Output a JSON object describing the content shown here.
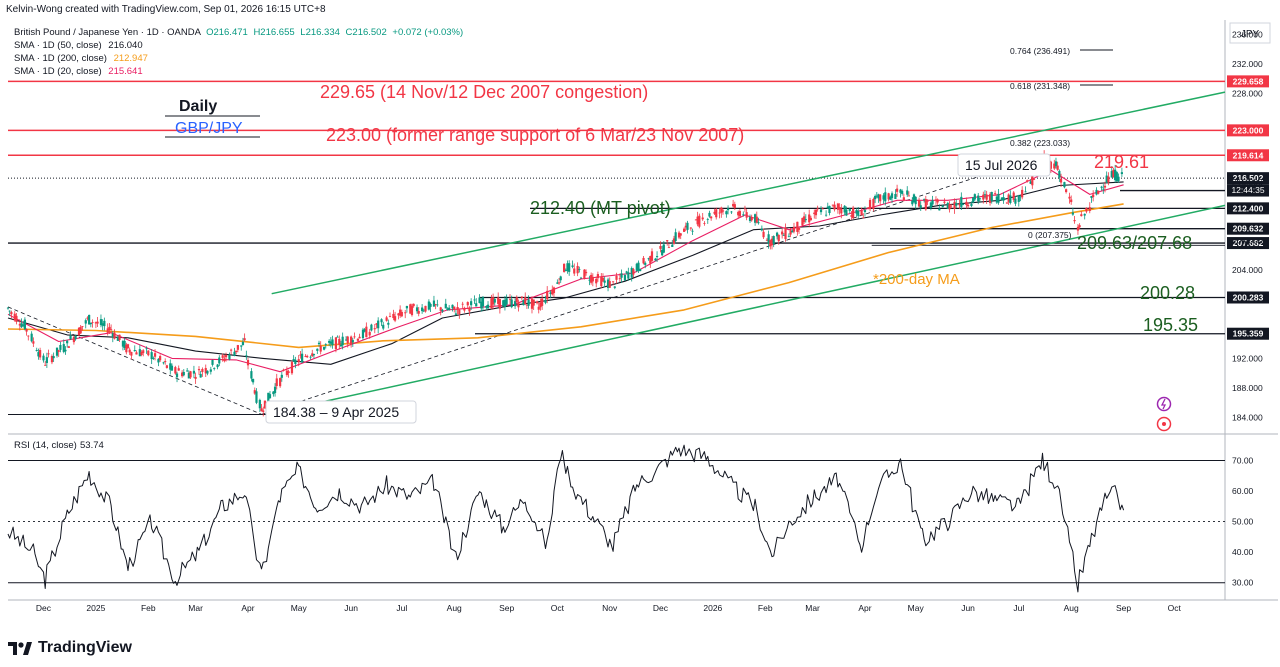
{
  "header": {
    "credit": "Kelvin-Wong created with TradingView.com, Sep 01, 2026 16:15 UTC+8"
  },
  "symbol_info": {
    "name": "British Pound / Japanese Yen · 1D · OANDA",
    "open": "O216.471",
    "high": "H216.655",
    "low": "L216.334",
    "close": "C216.502",
    "change": "+0.072 (+0.03%)"
  },
  "indicators": [
    {
      "label": "SMA · 1D (50, close)",
      "value": "216.040",
      "color": "#131722"
    },
    {
      "label": "SMA · 1D (200, close)",
      "value": "212.947",
      "color": "#f59c1a"
    },
    {
      "label": "SMA · 1D (20, close)",
      "value": "215.641",
      "color": "#e91e63"
    }
  ],
  "currency_label": "JPY",
  "rsi_label": {
    "name": "RSI (14, close)",
    "value": "53.74"
  },
  "brand": "TradingView",
  "annotations": {
    "daily": "Daily",
    "pair": "GBP/JPY",
    "level_229": "229.65 (14 Nov/12 Dec 2007 congestion)",
    "level_223": "223.00 (former range support of 6 Mar/23 Nov 2007)",
    "level_219": "219.61",
    "date_15jul": "15 Jul 2026",
    "mt_pivot": "212.40 (MT pivot)",
    "level_209": "209.63/207.68",
    "ma200": "*200-day MA",
    "level_200": "200.28",
    "level_195": "195.35",
    "low_label": "184.38 – 9 Apr 2025",
    "fib_764": "0.764 (236.491)",
    "fib_618": "0.618 (231.348)",
    "fib_382": "0.382 (223.033)",
    "fib_0": "0 (207.375)"
  },
  "chart_data": [
    {
      "type": "line",
      "title": "British Pound / Japanese Yen · 1D · OANDA",
      "ylim": [
        182,
        238
      ],
      "y_ticks": [
        184,
        188,
        192,
        196,
        200,
        204,
        208,
        212,
        216,
        220,
        224,
        228,
        232,
        236
      ],
      "y_tick_labels_visible": [
        "184.000",
        "188.000",
        "192.000",
        "204.000",
        "208.000",
        "216.000",
        "228.000",
        "232.000",
        "236.000"
      ],
      "x_tick_labels": [
        "Dec",
        "2025",
        "Feb",
        "Mar",
        "Apr",
        "May",
        "Jun",
        "Jul",
        "Aug",
        "Sep",
        "Oct",
        "Nov",
        "Dec",
        "2026",
        "Feb",
        "Mar",
        "Apr",
        "May",
        "Jun",
        "Jul",
        "Aug",
        "Sep",
        "Oct"
      ],
      "x_tick_dates": [
        "2024-12-01",
        "2025-01-01",
        "2025-02-01",
        "2025-03-01",
        "2025-04-01",
        "2025-05-01",
        "2025-06-01",
        "2025-07-01",
        "2025-08-01",
        "2025-09-01",
        "2025-10-01",
        "2025-11-01",
        "2025-12-01",
        "2026-01-01",
        "2026-02-01",
        "2026-03-01",
        "2026-04-01",
        "2026-05-01",
        "2026-06-01",
        "2026-07-01",
        "2026-08-01",
        "2026-09-01",
        "2026-10-01"
      ],
      "series": [
        {
          "name": "GBP/JPY close",
          "color": "#131722",
          "points": [
            [
              "2024-11-10",
              198.8
            ],
            [
              "2024-11-20",
              196.5
            ],
            [
              "2024-12-02",
              191.5
            ],
            [
              "2024-12-15",
              193.8
            ],
            [
              "2024-12-28",
              197.3
            ],
            [
              "2025-01-10",
              196.0
            ],
            [
              "2025-01-20",
              193.3
            ],
            [
              "2025-02-03",
              192.5
            ],
            [
              "2025-02-17",
              190.2
            ],
            [
              "2025-03-03",
              190.0
            ],
            [
              "2025-03-17",
              191.8
            ],
            [
              "2025-03-30",
              194.0
            ],
            [
              "2025-04-04",
              189.0
            ],
            [
              "2025-04-09",
              185.0
            ],
            [
              "2025-04-20",
              189.0
            ],
            [
              "2025-05-01",
              191.8
            ],
            [
              "2025-05-12",
              193.3
            ],
            [
              "2025-05-25",
              194.2
            ],
            [
              "2025-06-08",
              195.2
            ],
            [
              "2025-06-22",
              197.0
            ],
            [
              "2025-07-06",
              198.6
            ],
            [
              "2025-07-20",
              199.1
            ],
            [
              "2025-08-02",
              198.5
            ],
            [
              "2025-08-16",
              199.6
            ],
            [
              "2025-08-30",
              199.5
            ],
            [
              "2025-09-12",
              199.8
            ],
            [
              "2025-09-20",
              199.0
            ],
            [
              "2025-10-01",
              202.0
            ],
            [
              "2025-10-06",
              204.5
            ],
            [
              "2025-10-20",
              203.2
            ],
            [
              "2025-11-03",
              202.0
            ],
            [
              "2025-11-17",
              204.2
            ],
            [
              "2025-12-01",
              206.5
            ],
            [
              "2025-12-15",
              209.3
            ],
            [
              "2025-12-29",
              211.3
            ],
            [
              "2026-01-12",
              212.5
            ],
            [
              "2026-01-26",
              211.0
            ],
            [
              "2026-02-04",
              208.0
            ],
            [
              "2026-02-16",
              209.2
            ],
            [
              "2026-03-02",
              211.5
            ],
            [
              "2026-03-16",
              212.6
            ],
            [
              "2026-03-30",
              211.5
            ],
            [
              "2026-04-08",
              213.5
            ],
            [
              "2026-04-22",
              214.5
            ],
            [
              "2026-05-06",
              213.0
            ],
            [
              "2026-05-20",
              212.8
            ],
            [
              "2026-06-03",
              213.5
            ],
            [
              "2026-06-17",
              214.0
            ],
            [
              "2026-07-01",
              213.8
            ],
            [
              "2026-07-10",
              216.5
            ],
            [
              "2026-07-15",
              219.2
            ],
            [
              "2026-07-24",
              218.2
            ],
            [
              "2026-08-01",
              213.0
            ],
            [
              "2026-08-05",
              209.6
            ],
            [
              "2026-08-12",
              212.8
            ],
            [
              "2026-08-21",
              216.0
            ],
            [
              "2026-08-27",
              217.0
            ],
            [
              "2026-09-01",
              216.5
            ]
          ]
        },
        {
          "name": "SMA · 1D (50, close)",
          "color": "#131722",
          "points": [
            [
              "2024-11-10",
              197.5
            ],
            [
              "2024-12-15",
              195.2
            ],
            [
              "2025-01-20",
              194.8
            ],
            [
              "2025-03-01",
              193.0
            ],
            [
              "2025-04-10",
              192.0
            ],
            [
              "2025-05-20",
              191.2
            ],
            [
              "2025-06-25",
              194.0
            ],
            [
              "2025-07-25",
              197.5
            ],
            [
              "2025-08-30",
              199.0
            ],
            [
              "2025-10-05",
              200.2
            ],
            [
              "2025-11-10",
              202.5
            ],
            [
              "2025-12-20",
              206.0
            ],
            [
              "2026-01-25",
              209.5
            ],
            [
              "2026-03-05",
              210.0
            ],
            [
              "2026-04-10",
              211.5
            ],
            [
              "2026-05-15",
              212.8
            ],
            [
              "2026-06-20",
              213.5
            ],
            [
              "2026-07-25",
              215.5
            ],
            [
              "2026-09-01",
              216.0
            ]
          ]
        },
        {
          "name": "SMA · 1D (200, close)",
          "color": "#f59c1a",
          "points": [
            [
              "2024-11-10",
              196.0
            ],
            [
              "2025-01-01",
              195.8
            ],
            [
              "2025-03-01",
              195.0
            ],
            [
              "2025-05-01",
              193.5
            ],
            [
              "2025-06-20",
              194.4
            ],
            [
              "2025-08-15",
              194.8
            ],
            [
              "2025-10-15",
              196.3
            ],
            [
              "2025-12-15",
              198.6
            ],
            [
              "2026-02-15",
              202.3
            ],
            [
              "2026-04-15",
              206.4
            ],
            [
              "2026-06-15",
              209.8
            ],
            [
              "2026-08-01",
              211.8
            ],
            [
              "2026-09-01",
              213.0
            ]
          ]
        },
        {
          "name": "SMA · 1D (20, close)",
          "color": "#e91e63",
          "points": [
            [
              "2024-11-10",
              198.0
            ],
            [
              "2024-12-10",
              194.3
            ],
            [
              "2025-01-10",
              195.5
            ],
            [
              "2025-02-15",
              192.0
            ],
            [
              "2025-03-25",
              191.8
            ],
            [
              "2025-04-20",
              190.2
            ],
            [
              "2025-05-25",
              193.3
            ],
            [
              "2025-06-28",
              196.2
            ],
            [
              "2025-07-28",
              198.6
            ],
            [
              "2025-09-05",
              199.3
            ],
            [
              "2025-10-15",
              202.8
            ],
            [
              "2025-11-15",
              203.6
            ],
            [
              "2025-12-20",
              208.0
            ],
            [
              "2026-01-20",
              211.5
            ],
            [
              "2026-02-15",
              209.5
            ],
            [
              "2026-03-20",
              211.5
            ],
            [
              "2026-04-20",
              213.5
            ],
            [
              "2026-05-20",
              213.5
            ],
            [
              "2026-06-20",
              214.3
            ],
            [
              "2026-07-20",
              217.6
            ],
            [
              "2026-08-12",
              214.3
            ],
            [
              "2026-09-01",
              215.6
            ]
          ]
        }
      ],
      "horizontal_levels": [
        {
          "value": 229.658,
          "label": "229.658",
          "color": "#f23645"
        },
        {
          "value": 223.0,
          "label": "223.000",
          "color": "#f23645"
        },
        {
          "value": 219.614,
          "label": "219.614",
          "color": "#f23645"
        },
        {
          "value": 216.502,
          "label": "216.502",
          "color": "#131722"
        },
        {
          "value": 214.818,
          "label": "214.818",
          "color": "#131722"
        },
        {
          "value": 212.4,
          "label": "212.400",
          "color": "#131722"
        },
        {
          "value": 209.632,
          "label": "209.632",
          "color": "#131722"
        },
        {
          "value": 207.682,
          "label": "207.682",
          "color": "#131722"
        },
        {
          "value": 200.283,
          "label": "200.283",
          "color": "#131722"
        },
        {
          "value": 195.359,
          "label": "195.359",
          "color": "#131722"
        }
      ],
      "countdown_label": "12:44:35",
      "fib_levels": [
        {
          "ratio": 0.764,
          "value": 236.491
        },
        {
          "ratio": 0.618,
          "value": 231.348
        },
        {
          "ratio": 0.382,
          "value": 223.033
        },
        {
          "ratio": 0,
          "value": 207.375
        }
      ],
      "channel": {
        "color": "#22ab64",
        "upper": [
          [
            "2025-04-15",
            200.8
          ],
          [
            "2026-10-31",
            228.2
          ]
        ],
        "lower": [
          [
            "2025-04-15",
            184.6
          ],
          [
            "2026-10-31",
            212.8
          ]
        ]
      },
      "grid": false,
      "legend_position": "top-left"
    },
    {
      "type": "line",
      "title": "RSI (14, close)",
      "ylim": [
        25,
        78
      ],
      "y_ticks": [
        30,
        40,
        50,
        60,
        70
      ],
      "y_tick_labels": [
        "30.00",
        "40.00",
        "50.00",
        "60.00",
        "70.00"
      ],
      "reference_lines": [
        30,
        50,
        70
      ],
      "series": [
        {
          "name": "RSI (14, close)",
          "color": "#131722",
          "points": [
            [
              "2024-11-10",
              47
            ],
            [
              "2024-11-25",
              40
            ],
            [
              "2024-12-02",
              31
            ],
            [
              "2024-12-15",
              52
            ],
            [
              "2024-12-28",
              66
            ],
            [
              "2025-01-10",
              55
            ],
            [
              "2025-01-20",
              35
            ],
            [
              "2025-02-03",
              50
            ],
            [
              "2025-02-17",
              31
            ],
            [
              "2025-03-03",
              40
            ],
            [
              "2025-03-17",
              55
            ],
            [
              "2025-03-30",
              60
            ],
            [
              "2025-04-09",
              32
            ],
            [
              "2025-04-20",
              58
            ],
            [
              "2025-05-01",
              67
            ],
            [
              "2025-05-12",
              55
            ],
            [
              "2025-05-25",
              60
            ],
            [
              "2025-06-08",
              55
            ],
            [
              "2025-06-22",
              62
            ],
            [
              "2025-07-06",
              58
            ],
            [
              "2025-07-20",
              63
            ],
            [
              "2025-08-02",
              38
            ],
            [
              "2025-08-16",
              60
            ],
            [
              "2025-08-30",
              48
            ],
            [
              "2025-09-12",
              58
            ],
            [
              "2025-09-25",
              42
            ],
            [
              "2025-10-03",
              73
            ],
            [
              "2025-10-12",
              60
            ],
            [
              "2025-10-22",
              52
            ],
            [
              "2025-11-03",
              42
            ],
            [
              "2025-11-17",
              62
            ],
            [
              "2025-12-01",
              68
            ],
            [
              "2025-12-12",
              74
            ],
            [
              "2025-12-29",
              71
            ],
            [
              "2026-01-12",
              62
            ],
            [
              "2026-01-26",
              55
            ],
            [
              "2026-02-05",
              39
            ],
            [
              "2026-02-16",
              50
            ],
            [
              "2026-03-02",
              58
            ],
            [
              "2026-03-16",
              64
            ],
            [
              "2026-03-30",
              42
            ],
            [
              "2026-04-08",
              60
            ],
            [
              "2026-04-22",
              70
            ],
            [
              "2026-05-06",
              44
            ],
            [
              "2026-05-20",
              50
            ],
            [
              "2026-06-03",
              60
            ],
            [
              "2026-06-17",
              57
            ],
            [
              "2026-07-01",
              55
            ],
            [
              "2026-07-15",
              70
            ],
            [
              "2026-07-24",
              62
            ],
            [
              "2026-08-05",
              29
            ],
            [
              "2026-08-12",
              42
            ],
            [
              "2026-08-21",
              57
            ],
            [
              "2026-08-27",
              59
            ],
            [
              "2026-09-01",
              53.74
            ]
          ]
        }
      ]
    }
  ]
}
